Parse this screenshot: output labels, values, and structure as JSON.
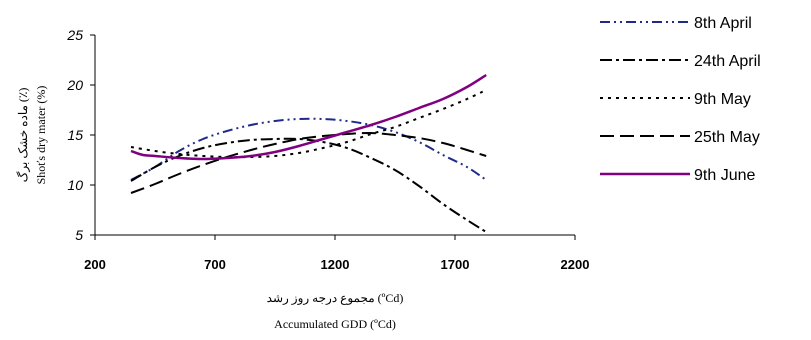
{
  "chart_data": {
    "type": "line",
    "title": "",
    "xlabel_fa": "مجموع درجه روز رشد (ºCd)",
    "xlabel": "Accumulated GDD (ºCd)",
    "ylabel_fa": "ماده خشک برگ (٪)",
    "ylabel": "Shoťs dry mater (%)",
    "xlim": [
      200,
      2200
    ],
    "ylim": [
      5,
      25
    ],
    "xticks": [
      200,
      700,
      1200,
      1700,
      2200
    ],
    "yticks": [
      5,
      10,
      15,
      20,
      25
    ],
    "grid": false,
    "legend": "right",
    "series": [
      {
        "name": "8th April",
        "color": "#1f2a8a",
        "dash": "10,4,2,4,2,4",
        "points": [
          [
            350,
            10.5
          ],
          [
            450,
            11.8
          ],
          [
            550,
            13.4
          ],
          [
            650,
            14.6
          ],
          [
            750,
            15.4
          ],
          [
            850,
            16.0
          ],
          [
            950,
            16.4
          ],
          [
            1050,
            16.6
          ],
          [
            1150,
            16.6
          ],
          [
            1250,
            16.4
          ],
          [
            1350,
            16.0
          ],
          [
            1450,
            15.3
          ],
          [
            1550,
            14.3
          ],
          [
            1650,
            13.0
          ],
          [
            1750,
            11.8
          ],
          [
            1830,
            10.5
          ]
        ]
      },
      {
        "name": "24th April",
        "color": "#000000",
        "dash": "12,4,3,4",
        "points": [
          [
            350,
            10.4
          ],
          [
            450,
            11.8
          ],
          [
            550,
            12.9
          ],
          [
            650,
            13.7
          ],
          [
            750,
            14.2
          ],
          [
            850,
            14.5
          ],
          [
            950,
            14.6
          ],
          [
            1050,
            14.6
          ],
          [
            1150,
            14.3
          ],
          [
            1250,
            13.7
          ],
          [
            1350,
            12.7
          ],
          [
            1450,
            11.5
          ],
          [
            1550,
            9.9
          ],
          [
            1650,
            8.1
          ],
          [
            1750,
            6.5
          ],
          [
            1830,
            5.3
          ]
        ]
      },
      {
        "name": "9th May",
        "color": "#000000",
        "dash": "3,5",
        "points": [
          [
            350,
            13.8
          ],
          [
            450,
            13.4
          ],
          [
            550,
            13.1
          ],
          [
            650,
            12.9
          ],
          [
            750,
            12.8
          ],
          [
            850,
            12.8
          ],
          [
            950,
            12.9
          ],
          [
            1050,
            13.2
          ],
          [
            1150,
            13.7
          ],
          [
            1250,
            14.3
          ],
          [
            1350,
            15.1
          ],
          [
            1450,
            15.8
          ],
          [
            1550,
            16.7
          ],
          [
            1650,
            17.6
          ],
          [
            1750,
            18.6
          ],
          [
            1830,
            19.5
          ]
        ]
      },
      {
        "name": "25th May",
        "color": "#000000",
        "dash": "14,6",
        "points": [
          [
            350,
            9.2
          ],
          [
            450,
            10.1
          ],
          [
            550,
            11.1
          ],
          [
            650,
            12.0
          ],
          [
            750,
            12.8
          ],
          [
            850,
            13.5
          ],
          [
            950,
            14.1
          ],
          [
            1050,
            14.6
          ],
          [
            1150,
            14.9
          ],
          [
            1250,
            15.1
          ],
          [
            1350,
            15.2
          ],
          [
            1450,
            15.0
          ],
          [
            1550,
            14.7
          ],
          [
            1650,
            14.2
          ],
          [
            1750,
            13.5
          ],
          [
            1830,
            12.9
          ]
        ]
      },
      {
        "name": "9th June",
        "color": "#800080",
        "dash": "",
        "points": [
          [
            350,
            13.4
          ],
          [
            400,
            13.0
          ],
          [
            450,
            12.9
          ],
          [
            550,
            12.7
          ],
          [
            650,
            12.6
          ],
          [
            750,
            12.7
          ],
          [
            850,
            12.9
          ],
          [
            950,
            13.3
          ],
          [
            1050,
            13.9
          ],
          [
            1150,
            14.6
          ],
          [
            1250,
            15.3
          ],
          [
            1350,
            16.0
          ],
          [
            1450,
            16.8
          ],
          [
            1550,
            17.7
          ],
          [
            1650,
            18.6
          ],
          [
            1750,
            19.8
          ],
          [
            1830,
            21.0
          ]
        ]
      }
    ]
  }
}
